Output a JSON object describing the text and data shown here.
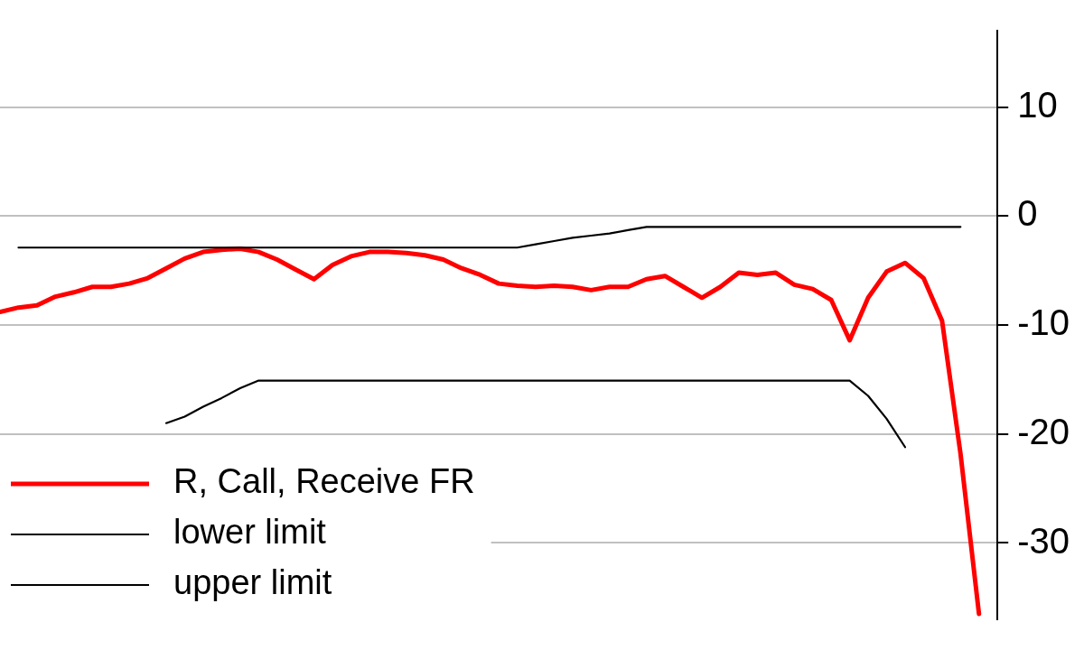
{
  "chart_data": {
    "type": "line",
    "categories": [
      null,
      null,
      null,
      null,
      null,
      null,
      null,
      null,
      null,
      null,
      null,
      null,
      null,
      null,
      null,
      null,
      null,
      null,
      null,
      null,
      null,
      null,
      null,
      null,
      null,
      null,
      null,
      null,
      null,
      null,
      null,
      null,
      null,
      null,
      null,
      null,
      null,
      null,
      null,
      null,
      null,
      null,
      null,
      null,
      null,
      null,
      null,
      null,
      null,
      null,
      null,
      null,
      null,
      null,
      null
    ],
    "series": [
      {
        "name": "R, Call, Receive FR",
        "color": "#ff0000",
        "values": [
          -8.8,
          -8.4,
          -8.2,
          -7.4,
          -7.0,
          -6.5,
          -6.5,
          -6.2,
          -5.7,
          -4.8,
          -3.9,
          -3.3,
          -3.1,
          -3.0,
          -3.3,
          -4.0,
          -4.9,
          -5.8,
          -4.5,
          -3.7,
          -3.3,
          -3.3,
          -3.4,
          -3.6,
          -4.0,
          -4.8,
          -5.4,
          -6.2,
          -6.4,
          -6.5,
          -6.4,
          -6.5,
          -6.8,
          -6.5,
          -6.5,
          -5.8,
          -5.5,
          -6.5,
          -7.5,
          -6.5,
          -5.2,
          -5.4,
          -5.2,
          -6.3,
          -6.7,
          -7.7,
          -11.4,
          -7.5,
          -5.1,
          -4.3,
          -5.7,
          -9.6,
          -21.8,
          -36.5,
          null
        ]
      },
      {
        "name": "lower limit",
        "color": "#000000",
        "values": [
          null,
          null,
          null,
          null,
          null,
          null,
          null,
          null,
          null,
          -19.0,
          -18.4,
          -17.5,
          -16.7,
          -15.8,
          -15.1,
          -15.1,
          -15.1,
          -15.1,
          -15.1,
          -15.1,
          -15.1,
          -15.1,
          -15.1,
          -15.1,
          -15.1,
          -15.1,
          -15.1,
          -15.1,
          -15.1,
          -15.1,
          -15.1,
          -15.1,
          -15.1,
          -15.1,
          -15.1,
          -15.1,
          -15.1,
          -15.1,
          -15.1,
          -15.1,
          -15.1,
          -15.1,
          -15.1,
          -15.1,
          -15.1,
          -15.1,
          -15.1,
          -16.5,
          -18.6,
          -21.2,
          null,
          null,
          null,
          null,
          null
        ]
      },
      {
        "name": "upper limit",
        "color": "#000000",
        "values": [
          null,
          -2.9,
          -2.9,
          -2.9,
          -2.9,
          -2.9,
          -2.9,
          -2.9,
          -2.9,
          -2.9,
          -2.9,
          -2.9,
          -2.9,
          -2.9,
          -2.9,
          -2.9,
          -2.9,
          -2.9,
          -2.9,
          -2.9,
          -2.9,
          -2.9,
          -2.9,
          -2.9,
          -2.9,
          -2.9,
          -2.9,
          -2.9,
          -2.9,
          -2.6,
          -2.3,
          -2.0,
          -1.8,
          -1.6,
          -1.3,
          -1.0,
          -1.0,
          -1.0,
          -1.0,
          -1.0,
          -1.0,
          -1.0,
          -1.0,
          -1.0,
          -1.0,
          -1.0,
          -1.0,
          -1.0,
          -1.0,
          -1.0,
          -1.0,
          -1.0,
          -1.0,
          null,
          null
        ]
      }
    ],
    "ylim": [
      -37,
      17
    ],
    "yticks": [
      10,
      0,
      -10,
      -20,
      -30
    ],
    "tick_labels": "y",
    "grid": "y",
    "legend": "bottom left",
    "marker": "none",
    "line_style": "solid"
  }
}
